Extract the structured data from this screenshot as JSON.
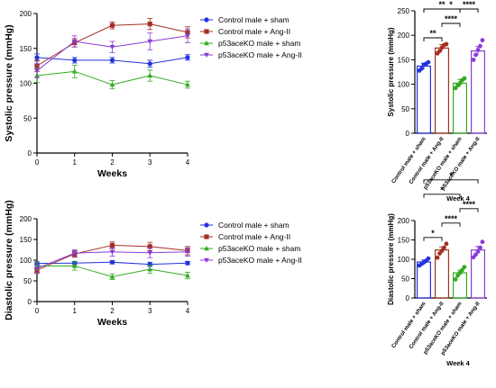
{
  "colors": {
    "control_sham": "#2233dd",
    "control_angii": "#a33020",
    "ko_sham": "#33aa22",
    "ko_angii": "#8a3ad8"
  },
  "chart_data": [
    {
      "type": "line",
      "ylabel": "Systolic pressure (mmHg)",
      "xlabel": "Weeks",
      "x": [
        0,
        1,
        2,
        3,
        4
      ],
      "xlim": [
        0,
        4
      ],
      "ylim": [
        0,
        200
      ],
      "yticks": [
        0,
        50,
        100,
        150,
        200
      ],
      "legend": "top-right",
      "series": [
        {
          "name": "Control male + sham",
          "color": "#2233dd",
          "marker": "circle",
          "values": [
            137,
            133,
            133,
            128,
            137
          ],
          "err": [
            5,
            4,
            4,
            5,
            4
          ]
        },
        {
          "name": "Control male + Ang-II",
          "color": "#a33020",
          "marker": "square",
          "values": [
            125,
            158,
            183,
            185,
            173
          ],
          "err": [
            8,
            6,
            5,
            8,
            8
          ]
        },
        {
          "name": "p53aceKO male + sham",
          "color": "#33aa22",
          "marker": "triangle-up",
          "values": [
            111,
            117,
            98,
            111,
            98
          ],
          "err": [
            10,
            9,
            6,
            8,
            5
          ]
        },
        {
          "name": "p53aceKO male + Ang-II",
          "color": "#8a3ad8",
          "marker": "triangle-down",
          "values": [
            118,
            160,
            152,
            160,
            168
          ],
          "err": [
            10,
            8,
            8,
            12,
            10
          ]
        }
      ]
    },
    {
      "type": "bar",
      "ylabel": "Systolic pressure (mmHg)",
      "xlabel": "Week 4",
      "categories": [
        "Control male + sham",
        "Control male + Ang-II",
        "p53aceKO male + sham",
        "p53aceKO male + Ang-II"
      ],
      "values": [
        137,
        174,
        102,
        168
      ],
      "err": [
        6,
        7,
        8,
        9
      ],
      "points": [
        [
          128,
          132,
          140,
          142,
          145
        ],
        [
          163,
          168,
          175,
          180,
          182
        ],
        [
          92,
          98,
          102,
          108,
          112
        ],
        [
          150,
          160,
          170,
          178,
          190
        ]
      ],
      "ylim": [
        0,
        250
      ],
      "yticks": [
        0,
        50,
        100,
        150,
        200,
        250
      ],
      "significance": [
        {
          "from": 0,
          "to": 1,
          "label": "**"
        },
        {
          "from": 2,
          "to": 3,
          "label": "****"
        },
        {
          "from": 1,
          "to": 2,
          "label": "****"
        },
        {
          "from": 0,
          "to": 2,
          "label": "**"
        },
        {
          "from": 0,
          "to": 3,
          "label": "*"
        }
      ]
    },
    {
      "type": "line",
      "ylabel": "Diastolic pressure (mmHg)",
      "xlabel": "Weeks",
      "x": [
        0,
        1,
        2,
        3,
        4
      ],
      "xlim": [
        0,
        4
      ],
      "ylim": [
        0,
        200
      ],
      "yticks": [
        0,
        50,
        100,
        150,
        200
      ],
      "legend": "top-right",
      "series": [
        {
          "name": "Control male + sham",
          "color": "#2233dd",
          "marker": "circle",
          "values": [
            92,
            93,
            95,
            90,
            93
          ],
          "err": [
            4,
            4,
            4,
            5,
            4
          ]
        },
        {
          "name": "Control male + Ang-II",
          "color": "#a33020",
          "marker": "square",
          "values": [
            76,
            115,
            136,
            133,
            123
          ],
          "err": [
            8,
            8,
            8,
            10,
            10
          ]
        },
        {
          "name": "p53aceKO male + sham",
          "color": "#33aa22",
          "marker": "triangle-up",
          "values": [
            86,
            86,
            60,
            78,
            63
          ],
          "err": [
            8,
            10,
            7,
            10,
            8
          ]
        },
        {
          "name": "p53aceKO male + Ang-II",
          "color": "#8a3ad8",
          "marker": "triangle-down",
          "values": [
            80,
            117,
            120,
            118,
            120
          ],
          "err": [
            10,
            8,
            10,
            12,
            10
          ]
        }
      ]
    },
    {
      "type": "bar",
      "ylabel": "Diastolic pressure (mmHg)",
      "xlabel": "Week 4",
      "categories": [
        "Control male + sham",
        "Control male + Ang-II",
        "p53aceKO male + sham",
        "p53aceKO male + Ang-II"
      ],
      "values": [
        93,
        124,
        65,
        124
      ],
      "err": [
        5,
        8,
        7,
        9
      ],
      "points": [
        [
          84,
          88,
          92,
          96,
          102
        ],
        [
          104,
          115,
          122,
          130,
          140
        ],
        [
          48,
          58,
          65,
          72,
          80
        ],
        [
          105,
          112,
          120,
          130,
          145
        ]
      ],
      "ylim": [
        0,
        200
      ],
      "yticks": [
        0,
        50,
        100,
        150,
        200
      ],
      "significance": [
        {
          "from": 0,
          "to": 1,
          "label": "*"
        },
        {
          "from": 1,
          "to": 2,
          "label": "****"
        },
        {
          "from": 0,
          "to": 2,
          "label": "*"
        },
        {
          "from": 2,
          "to": 3,
          "label": "****"
        },
        {
          "from": 0,
          "to": 3,
          "label": "*"
        }
      ]
    }
  ]
}
